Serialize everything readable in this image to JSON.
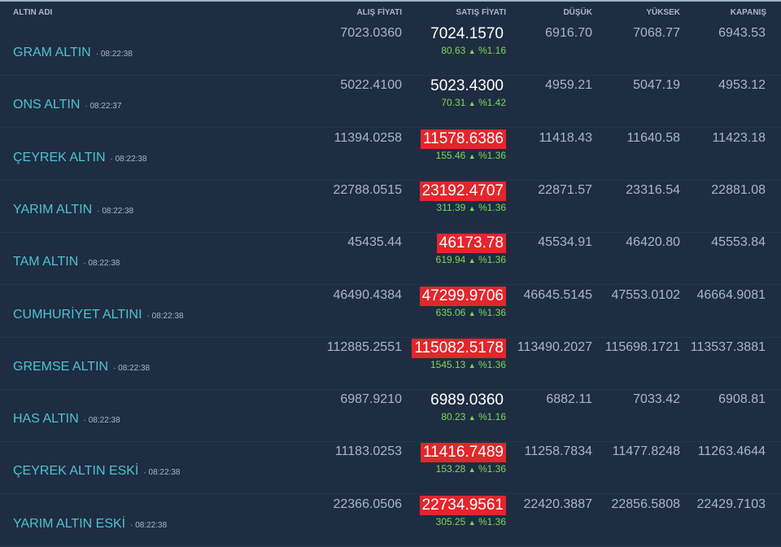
{
  "header": {
    "name": "ALTIN ADI",
    "buy": "ALIŞ FİYATI",
    "sell": "SATIŞ FİYATI",
    "low": "DÜŞÜK",
    "high": "YÜKSEK",
    "close": "KAPANIŞ"
  },
  "colors": {
    "highlight": "#e3262b",
    "up": "#7ed957",
    "name": "#4fc3d0"
  },
  "rows": [
    {
      "name": "GRAM ALTIN",
      "time": "08:22:38",
      "buy": "7023.0360",
      "sell": "7024.1570",
      "highlight": false,
      "change": "80.63",
      "arrow": "▲",
      "pct": "%1.16",
      "low": "6916.70",
      "high": "7068.77",
      "close": "6943.53"
    },
    {
      "name": "ONS ALTIN",
      "time": "08:22:37",
      "buy": "5022.4100",
      "sell": "5023.4300",
      "highlight": false,
      "change": "70.31",
      "arrow": "▲",
      "pct": "%1.42",
      "low": "4959.21",
      "high": "5047.19",
      "close": "4953.12"
    },
    {
      "name": "ÇEYREK ALTIN",
      "time": "08:22:38",
      "buy": "11394.0258",
      "sell": "11578.6386",
      "highlight": true,
      "change": "155.46",
      "arrow": "▲",
      "pct": "%1.36",
      "low": "11418.43",
      "high": "11640.58",
      "close": "11423.18"
    },
    {
      "name": "YARIM ALTIN",
      "time": "08:22:38",
      "buy": "22788.0515",
      "sell": "23192.4707",
      "highlight": true,
      "change": "311.39",
      "arrow": "▲",
      "pct": "%1.36",
      "low": "22871.57",
      "high": "23316.54",
      "close": "22881.08"
    },
    {
      "name": "TAM ALTIN",
      "time": "08:22:38",
      "buy": "45435.44",
      "sell": "46173.78",
      "highlight": true,
      "change": "619.94",
      "arrow": "▲",
      "pct": "%1.36",
      "low": "45534.91",
      "high": "46420.80",
      "close": "45553.84"
    },
    {
      "name": "CUMHURİYET ALTINI",
      "time": "08:22:38",
      "buy": "46490.4384",
      "sell": "47299.9706",
      "highlight": true,
      "change": "635.06",
      "arrow": "▲",
      "pct": "%1.36",
      "low": "46645.5145",
      "high": "47553.0102",
      "close": "46664.9081"
    },
    {
      "name": "GREMSE ALTIN",
      "time": "08:22:38",
      "buy": "112885.2551",
      "sell": "115082.5178",
      "highlight": true,
      "change": "1545.13",
      "arrow": "▲",
      "pct": "%1.36",
      "low": "113490.2027",
      "high": "115698.1721",
      "close": "113537.3881"
    },
    {
      "name": "HAS ALTIN",
      "time": "08:22:38",
      "buy": "6987.9210",
      "sell": "6989.0360",
      "highlight": false,
      "change": "80.23",
      "arrow": "▲",
      "pct": "%1.16",
      "low": "6882.11",
      "high": "7033.42",
      "close": "6908.81"
    },
    {
      "name": "ÇEYREK ALTIN ESKİ",
      "time": "08:22:38",
      "buy": "11183.0253",
      "sell": "11416.7489",
      "highlight": true,
      "change": "153.28",
      "arrow": "▲",
      "pct": "%1.36",
      "low": "11258.7834",
      "high": "11477.8248",
      "close": "11263.4644"
    },
    {
      "name": "YARIM ALTIN ESKİ",
      "time": "08:22:38",
      "buy": "22366.0506",
      "sell": "22734.9561",
      "highlight": true,
      "change": "305.25",
      "arrow": "▲",
      "pct": "%1.36",
      "low": "22420.3887",
      "high": "22856.5808",
      "close": "22429.7103"
    }
  ]
}
